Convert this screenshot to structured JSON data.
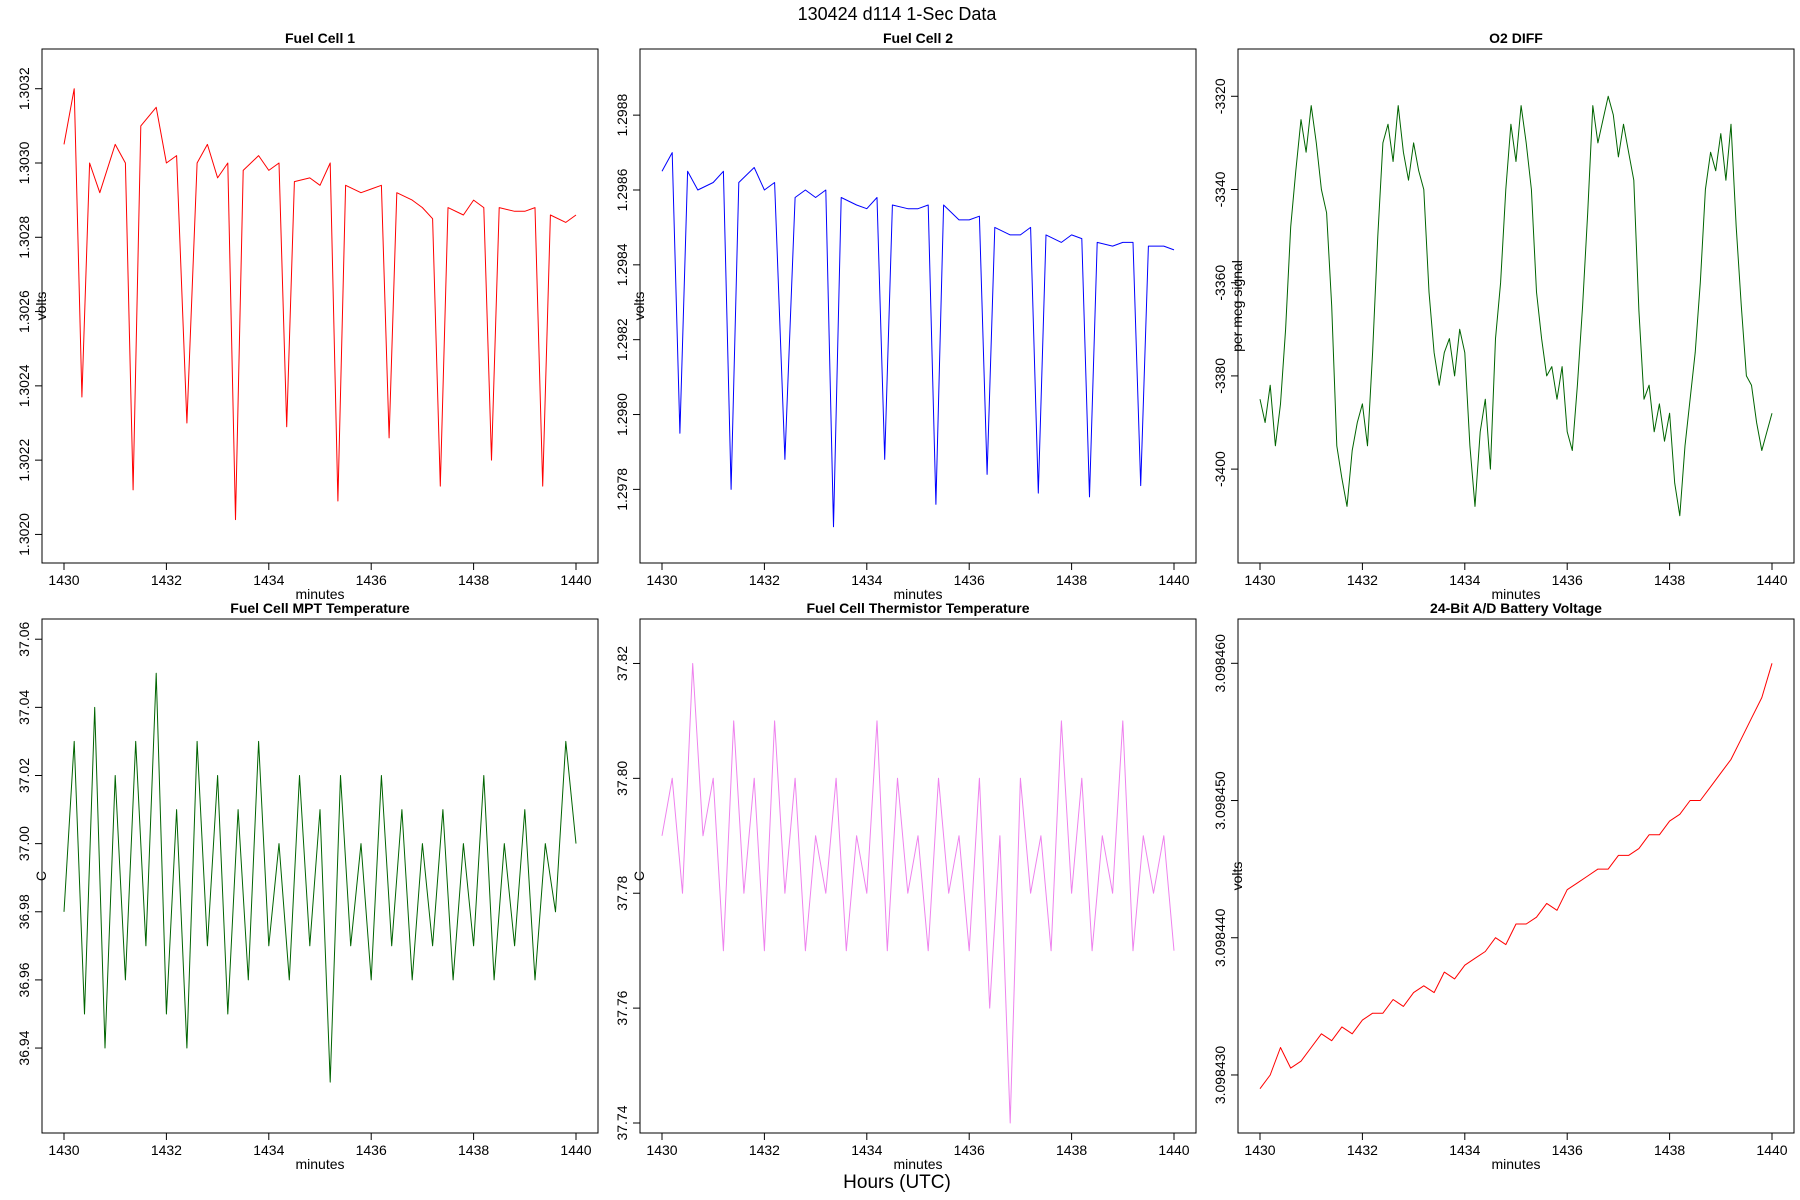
{
  "figure": {
    "title": "130424   d114   1-Sec Data",
    "footer": "Hours (UTC)"
  },
  "chart_data": [
    {
      "type": "line",
      "title": "Fuel Cell 1",
      "xlabel": "minutes",
      "ylabel": "volts",
      "xlim": [
        1430,
        1440
      ],
      "ylim": [
        1.30195,
        1.30328
      ],
      "xticks": [
        1430,
        1432,
        1434,
        1436,
        1438,
        1440
      ],
      "xtick_labels": [
        "1430",
        "1432",
        "1434",
        "1436",
        "1438",
        "1440"
      ],
      "yticks": [
        1.302,
        1.3022,
        1.3024,
        1.3026,
        1.3028,
        1.303,
        1.3032
      ],
      "ytick_labels": [
        "1.3020",
        "1.3022",
        "1.3024",
        "1.3026",
        "1.3028",
        "1.3030",
        "1.3032"
      ],
      "series": [
        {
          "color": "#ff0000",
          "x": [
            1430.0,
            1430.2,
            1430.35,
            1430.5,
            1430.7,
            1431.0,
            1431.2,
            1431.35,
            1431.5,
            1431.8,
            1432.0,
            1432.2,
            1432.4,
            1432.6,
            1432.8,
            1433.0,
            1433.2,
            1433.35,
            1433.5,
            1433.8,
            1434.0,
            1434.2,
            1434.35,
            1434.5,
            1434.8,
            1435.0,
            1435.2,
            1435.35,
            1435.5,
            1435.8,
            1436.0,
            1436.2,
            1436.35,
            1436.5,
            1436.8,
            1437.0,
            1437.2,
            1437.35,
            1437.5,
            1437.8,
            1438.0,
            1438.2,
            1438.35,
            1438.5,
            1438.8,
            1439.0,
            1439.2,
            1439.35,
            1439.5,
            1439.8,
            1440.0
          ],
          "y": [
            1.30305,
            1.3032,
            1.30237,
            1.303,
            1.30292,
            1.30305,
            1.303,
            1.30212,
            1.3031,
            1.30315,
            1.303,
            1.30302,
            1.3023,
            1.303,
            1.30305,
            1.30296,
            1.303,
            1.30204,
            1.30298,
            1.30302,
            1.30298,
            1.303,
            1.30229,
            1.30295,
            1.30296,
            1.30294,
            1.303,
            1.30209,
            1.30294,
            1.30292,
            1.30293,
            1.30294,
            1.30226,
            1.30292,
            1.3029,
            1.30288,
            1.30285,
            1.30213,
            1.30288,
            1.30286,
            1.3029,
            1.30288,
            1.3022,
            1.30288,
            1.30287,
            1.30287,
            1.30288,
            1.30213,
            1.30286,
            1.30284,
            1.30286
          ]
        }
      ]
    },
    {
      "type": "line",
      "title": "Fuel Cell 2",
      "xlabel": "minutes",
      "ylabel": "volts",
      "xlim": [
        1430,
        1440
      ],
      "ylim": [
        1.29763,
        1.29895
      ],
      "xticks": [
        1430,
        1432,
        1434,
        1436,
        1438,
        1440
      ],
      "xtick_labels": [
        "1430",
        "1432",
        "1434",
        "1436",
        "1438",
        "1440"
      ],
      "yticks": [
        1.2978,
        1.298,
        1.2982,
        1.2984,
        1.2986,
        1.2988
      ],
      "ytick_labels": [
        "1.2978",
        "1.2980",
        "1.2982",
        "1.2984",
        "1.2986",
        "1.2988"
      ],
      "series": [
        {
          "color": "#0000ff",
          "x": [
            1430.0,
            1430.2,
            1430.35,
            1430.5,
            1430.7,
            1431.0,
            1431.2,
            1431.35,
            1431.5,
            1431.8,
            1432.0,
            1432.2,
            1432.4,
            1432.6,
            1432.8,
            1433.0,
            1433.2,
            1433.35,
            1433.5,
            1433.8,
            1434.0,
            1434.2,
            1434.35,
            1434.5,
            1434.8,
            1435.0,
            1435.2,
            1435.35,
            1435.5,
            1435.8,
            1436.0,
            1436.2,
            1436.35,
            1436.5,
            1436.8,
            1437.0,
            1437.2,
            1437.35,
            1437.5,
            1437.8,
            1438.0,
            1438.2,
            1438.35,
            1438.5,
            1438.8,
            1439.0,
            1439.2,
            1439.35,
            1439.5,
            1439.8,
            1440.0
          ],
          "y": [
            1.29865,
            1.2987,
            1.29795,
            1.29865,
            1.2986,
            1.29862,
            1.29865,
            1.2978,
            1.29862,
            1.29866,
            1.2986,
            1.29862,
            1.29788,
            1.29858,
            1.2986,
            1.29858,
            1.2986,
            1.2977,
            1.29858,
            1.29856,
            1.29855,
            1.29858,
            1.29788,
            1.29856,
            1.29855,
            1.29855,
            1.29856,
            1.29776,
            1.29856,
            1.29852,
            1.29852,
            1.29853,
            1.29784,
            1.2985,
            1.29848,
            1.29848,
            1.2985,
            1.29779,
            1.29848,
            1.29846,
            1.29848,
            1.29847,
            1.29778,
            1.29846,
            1.29845,
            1.29846,
            1.29846,
            1.29781,
            1.29845,
            1.29845,
            1.29844
          ]
        }
      ]
    },
    {
      "type": "line",
      "title": "O2 DIFF",
      "xlabel": "minutes",
      "ylabel": "per meg signal",
      "xlim": [
        1430,
        1440
      ],
      "ylim": [
        -3418,
        -3312
      ],
      "xticks": [
        1430,
        1432,
        1434,
        1436,
        1438,
        1440
      ],
      "xtick_labels": [
        "1430",
        "1432",
        "1434",
        "1436",
        "1438",
        "1440"
      ],
      "yticks": [
        -3400,
        -3380,
        -3360,
        -3340,
        -3320
      ],
      "ytick_labels": [
        "-3400",
        "-3380",
        "-3360",
        "-3340",
        "-3320"
      ],
      "series": [
        {
          "color": "#006400",
          "x": [
            1430.0,
            1430.1,
            1430.2,
            1430.3,
            1430.4,
            1430.5,
            1430.6,
            1430.7,
            1430.8,
            1430.9,
            1431.0,
            1431.1,
            1431.2,
            1431.3,
            1431.4,
            1431.5,
            1431.6,
            1431.7,
            1431.8,
            1431.9,
            1432.0,
            1432.1,
            1432.2,
            1432.3,
            1432.4,
            1432.5,
            1432.6,
            1432.7,
            1432.8,
            1432.9,
            1433.0,
            1433.1,
            1433.2,
            1433.3,
            1433.4,
            1433.5,
            1433.6,
            1433.7,
            1433.8,
            1433.9,
            1434.0,
            1434.1,
            1434.2,
            1434.3,
            1434.4,
            1434.5,
            1434.6,
            1434.7,
            1434.8,
            1434.9,
            1435.0,
            1435.1,
            1435.2,
            1435.3,
            1435.4,
            1435.5,
            1435.6,
            1435.7,
            1435.8,
            1435.9,
            1436.0,
            1436.1,
            1436.2,
            1436.3,
            1436.4,
            1436.5,
            1436.6,
            1436.7,
            1436.8,
            1436.9,
            1437.0,
            1437.1,
            1437.2,
            1437.3,
            1437.4,
            1437.5,
            1437.6,
            1437.7,
            1437.8,
            1437.9,
            1438.0,
            1438.1,
            1438.2,
            1438.3,
            1438.4,
            1438.5,
            1438.6,
            1438.7,
            1438.8,
            1438.9,
            1439.0,
            1439.1,
            1439.2,
            1439.3,
            1439.4,
            1439.5,
            1439.6,
            1439.7,
            1439.8,
            1439.9,
            1440.0
          ],
          "y": [
            -3385,
            -3390,
            -3382,
            -3395,
            -3386,
            -3370,
            -3348,
            -3336,
            -3325,
            -3332,
            -3322,
            -3330,
            -3340,
            -3345,
            -3365,
            -3395,
            -3402,
            -3408,
            -3396,
            -3390,
            -3386,
            -3395,
            -3375,
            -3350,
            -3330,
            -3326,
            -3334,
            -3322,
            -3332,
            -3338,
            -3330,
            -3336,
            -3340,
            -3362,
            -3375,
            -3382,
            -3375,
            -3372,
            -3380,
            -3370,
            -3375,
            -3395,
            -3408,
            -3392,
            -3385,
            -3400,
            -3372,
            -3360,
            -3340,
            -3326,
            -3334,
            -3322,
            -3330,
            -3340,
            -3362,
            -3372,
            -3380,
            -3378,
            -3385,
            -3378,
            -3392,
            -3396,
            -3382,
            -3365,
            -3345,
            -3322,
            -3330,
            -3325,
            -3320,
            -3324,
            -3333,
            -3326,
            -3332,
            -3338,
            -3366,
            -3385,
            -3382,
            -3392,
            -3386,
            -3394,
            -3388,
            -3403,
            -3410,
            -3395,
            -3385,
            -3375,
            -3360,
            -3340,
            -3332,
            -3336,
            -3328,
            -3338,
            -3326,
            -3348,
            -3365,
            -3380,
            -3382,
            -3390,
            -3396,
            -3392,
            -3388
          ]
        }
      ]
    },
    {
      "type": "line",
      "title": "Fuel Cell MPT Temperature",
      "xlabel": "minutes",
      "ylabel": "C",
      "xlim": [
        1430,
        1440
      ],
      "ylim": [
        36.918,
        37.063
      ],
      "xticks": [
        1430,
        1432,
        1434,
        1436,
        1438,
        1440
      ],
      "xtick_labels": [
        "1430",
        "1432",
        "1434",
        "1436",
        "1438",
        "1440"
      ],
      "yticks": [
        36.94,
        36.96,
        36.98,
        37.0,
        37.02,
        37.04,
        37.06
      ],
      "ytick_labels": [
        "36.94",
        "36.96",
        "36.98",
        "37.00",
        "37.02",
        "37.04",
        "37.06"
      ],
      "series": [
        {
          "color": "#006400",
          "x": [
            1430.0,
            1430.2,
            1430.4,
            1430.6,
            1430.8,
            1431.0,
            1431.2,
            1431.4,
            1431.6,
            1431.8,
            1432.0,
            1432.2,
            1432.4,
            1432.6,
            1432.8,
            1433.0,
            1433.2,
            1433.4,
            1433.6,
            1433.8,
            1434.0,
            1434.2,
            1434.4,
            1434.6,
            1434.8,
            1435.0,
            1435.2,
            1435.4,
            1435.6,
            1435.8,
            1436.0,
            1436.2,
            1436.4,
            1436.6,
            1436.8,
            1437.0,
            1437.2,
            1437.4,
            1437.6,
            1437.8,
            1438.0,
            1438.2,
            1438.4,
            1438.6,
            1438.8,
            1439.0,
            1439.2,
            1439.4,
            1439.6,
            1439.8,
            1440.0
          ],
          "y": [
            36.98,
            37.03,
            36.95,
            37.04,
            36.94,
            37.02,
            36.96,
            37.03,
            36.97,
            37.05,
            36.95,
            37.01,
            36.94,
            37.03,
            36.97,
            37.02,
            36.95,
            37.01,
            36.96,
            37.03,
            36.97,
            37.0,
            36.96,
            37.02,
            36.97,
            37.01,
            36.93,
            37.02,
            36.97,
            37.0,
            36.96,
            37.02,
            36.97,
            37.01,
            36.96,
            37.0,
            36.97,
            37.01,
            36.96,
            37.0,
            36.97,
            37.02,
            36.96,
            37.0,
            36.97,
            37.01,
            36.96,
            37.0,
            36.98,
            37.03,
            37.0
          ]
        }
      ]
    },
    {
      "type": "line",
      "title": "Fuel Cell Thermistor Temperature",
      "xlabel": "minutes",
      "ylabel": "C",
      "xlim": [
        1430,
        1440
      ],
      "ylim": [
        37.74,
        37.826
      ],
      "xticks": [
        1430,
        1432,
        1434,
        1436,
        1438,
        1440
      ],
      "xtick_labels": [
        "1430",
        "1432",
        "1434",
        "1436",
        "1438",
        "1440"
      ],
      "yticks": [
        37.74,
        37.76,
        37.78,
        37.8,
        37.82
      ],
      "ytick_labels": [
        "37.74",
        "37.76",
        "37.78",
        "37.80",
        "37.82"
      ],
      "series": [
        {
          "color": "#ee82ee",
          "x": [
            1430.0,
            1430.2,
            1430.4,
            1430.6,
            1430.8,
            1431.0,
            1431.2,
            1431.4,
            1431.6,
            1431.8,
            1432.0,
            1432.2,
            1432.4,
            1432.6,
            1432.8,
            1433.0,
            1433.2,
            1433.4,
            1433.6,
            1433.8,
            1434.0,
            1434.2,
            1434.4,
            1434.6,
            1434.8,
            1435.0,
            1435.2,
            1435.4,
            1435.6,
            1435.8,
            1436.0,
            1436.2,
            1436.4,
            1436.6,
            1436.8,
            1437.0,
            1437.2,
            1437.4,
            1437.6,
            1437.8,
            1438.0,
            1438.2,
            1438.4,
            1438.6,
            1438.8,
            1439.0,
            1439.2,
            1439.4,
            1439.6,
            1439.8,
            1440.0
          ],
          "y": [
            37.79,
            37.8,
            37.78,
            37.82,
            37.79,
            37.8,
            37.77,
            37.81,
            37.78,
            37.8,
            37.77,
            37.81,
            37.78,
            37.8,
            37.77,
            37.79,
            37.78,
            37.8,
            37.77,
            37.79,
            37.78,
            37.81,
            37.77,
            37.8,
            37.78,
            37.79,
            37.77,
            37.8,
            37.78,
            37.79,
            37.77,
            37.8,
            37.76,
            37.79,
            37.74,
            37.8,
            37.78,
            37.79,
            37.77,
            37.81,
            37.78,
            37.8,
            37.77,
            37.79,
            37.78,
            37.81,
            37.77,
            37.79,
            37.78,
            37.79,
            37.77
          ]
        }
      ]
    },
    {
      "type": "line",
      "title": "24-Bit A/D Battery Voltage",
      "xlabel": "minutes",
      "ylabel": "volts",
      "xlim": [
        1430,
        1440
      ],
      "ylim": [
        3.0984265,
        3.0984625
      ],
      "xticks": [
        1430,
        1432,
        1434,
        1436,
        1438,
        1440
      ],
      "xtick_labels": [
        "1430",
        "1432",
        "1434",
        "1436",
        "1438",
        "1440"
      ],
      "yticks": [
        3.09843,
        3.09844,
        3.09845,
        3.09846
      ],
      "ytick_labels": [
        "3.098430",
        "3.098440",
        "3.098450",
        "3.098460"
      ],
      "series": [
        {
          "color": "#ff0000",
          "x": [
            1430.0,
            1430.2,
            1430.4,
            1430.6,
            1430.8,
            1431.0,
            1431.2,
            1431.4,
            1431.6,
            1431.8,
            1432.0,
            1432.2,
            1432.4,
            1432.6,
            1432.8,
            1433.0,
            1433.2,
            1433.4,
            1433.6,
            1433.8,
            1434.0,
            1434.2,
            1434.4,
            1434.6,
            1434.8,
            1435.0,
            1435.2,
            1435.4,
            1435.6,
            1435.8,
            1436.0,
            1436.2,
            1436.4,
            1436.6,
            1436.8,
            1437.0,
            1437.2,
            1437.4,
            1437.6,
            1437.8,
            1438.0,
            1438.2,
            1438.4,
            1438.6,
            1438.8,
            1439.0,
            1439.2,
            1439.4,
            1439.6,
            1439.8,
            1440.0
          ],
          "y": [
            3.098429,
            3.09843,
            3.098432,
            3.0984305,
            3.098431,
            3.098432,
            3.098433,
            3.0984325,
            3.0984335,
            3.098433,
            3.098434,
            3.0984345,
            3.0984345,
            3.0984355,
            3.098435,
            3.098436,
            3.0984365,
            3.098436,
            3.0984375,
            3.098437,
            3.098438,
            3.0984385,
            3.098439,
            3.09844,
            3.0984395,
            3.098441,
            3.098441,
            3.0984415,
            3.0984425,
            3.098442,
            3.0984435,
            3.098444,
            3.0984445,
            3.098445,
            3.098445,
            3.098446,
            3.098446,
            3.0984465,
            3.0984475,
            3.0984475,
            3.0984485,
            3.098449,
            3.09845,
            3.09845,
            3.098451,
            3.098452,
            3.098453,
            3.0984545,
            3.098456,
            3.0984575,
            3.09846
          ]
        }
      ]
    }
  ]
}
